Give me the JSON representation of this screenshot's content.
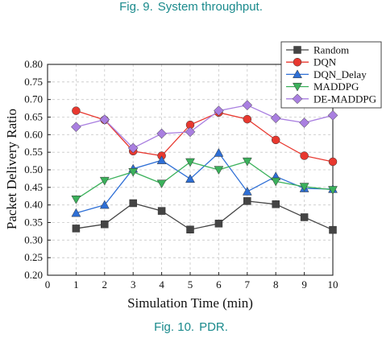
{
  "captions": {
    "top": {
      "label": "Fig. 9.",
      "text": "System throughput."
    },
    "bottom": {
      "label": "Fig. 10.",
      "text": "PDR."
    }
  },
  "chart_data": {
    "type": "line",
    "title": "",
    "xlabel": "Simulation Time (min)",
    "ylabel": "Packet Delivery Ratio",
    "xlim": [
      0,
      10
    ],
    "ylim": [
      0.2,
      0.8
    ],
    "xticks": [
      0,
      1,
      2,
      3,
      4,
      5,
      6,
      7,
      8,
      9,
      10
    ],
    "yticks": [
      0.2,
      0.25,
      0.3,
      0.35,
      0.4,
      0.45,
      0.5,
      0.55,
      0.6,
      0.65,
      0.7,
      0.75,
      0.8
    ],
    "grid": true,
    "legend": "top-right",
    "x": [
      1,
      2,
      3,
      4,
      5,
      6,
      7,
      8,
      9,
      10
    ],
    "series": [
      {
        "name": "Random",
        "color": "#444444",
        "marker": "square",
        "values": [
          0.333,
          0.345,
          0.405,
          0.383,
          0.33,
          0.347,
          0.411,
          0.402,
          0.365,
          0.329
        ]
      },
      {
        "name": "DQN",
        "color": "#e8382f",
        "marker": "circle",
        "values": [
          0.668,
          0.642,
          0.553,
          0.54,
          0.628,
          0.663,
          0.644,
          0.585,
          0.54,
          0.523
        ]
      },
      {
        "name": "DQN_Delay",
        "color": "#2e6fd6",
        "marker": "triangle-up",
        "values": [
          0.377,
          0.4,
          0.503,
          0.527,
          0.474,
          0.548,
          0.438,
          0.481,
          0.447,
          0.445
        ]
      },
      {
        "name": "MADDPG",
        "color": "#3bb15b",
        "marker": "triangle-down",
        "values": [
          0.416,
          0.469,
          0.494,
          0.461,
          0.522,
          0.5,
          0.524,
          0.467,
          0.452,
          0.443
        ]
      },
      {
        "name": "DE-MADDPG",
        "color": "#a97fe0",
        "marker": "diamond",
        "values": [
          0.622,
          0.643,
          0.562,
          0.603,
          0.608,
          0.668,
          0.684,
          0.647,
          0.634,
          0.655
        ]
      }
    ]
  }
}
